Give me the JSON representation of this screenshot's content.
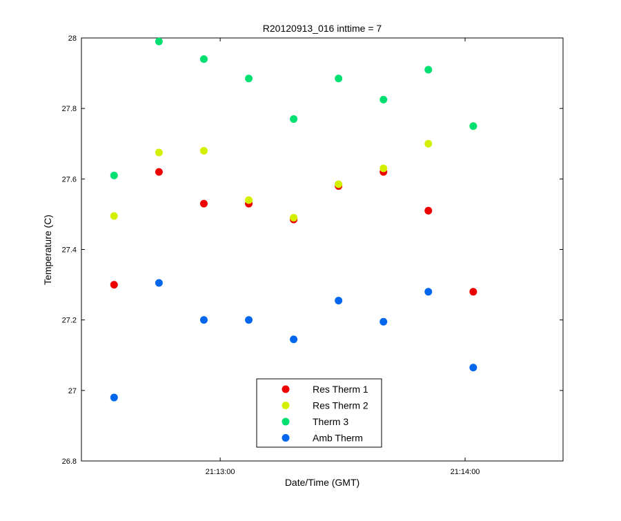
{
  "chart_data": {
    "type": "scatter",
    "title": "R20120913_016 inttime = 7",
    "xlabel": "Date/Time (GMT)",
    "ylabel": "Temperature (C)",
    "xlim": [
      "21:12:26",
      "21:14:24"
    ],
    "ylim": [
      26.8,
      28
    ],
    "x_ticks": [
      {
        "value": "21:13:00",
        "label": "21:13:00"
      },
      {
        "value": "21:14:00",
        "label": "21:14:00"
      }
    ],
    "y_ticks": [
      26.8,
      27,
      27.2,
      27.4,
      27.6,
      27.8,
      28
    ],
    "grid": false,
    "legend_position": "bottom-center",
    "x": [
      "21:12:34",
      "21:12:45",
      "21:12:56",
      "21:13:07",
      "21:13:18",
      "21:13:29",
      "21:13:40",
      "21:13:51",
      "21:14:02"
    ],
    "series": [
      {
        "name": "Res Therm 1",
        "color": "#ee0000",
        "values": [
          27.3,
          27.62,
          27.53,
          27.53,
          27.485,
          27.58,
          27.62,
          27.51,
          27.28
        ]
      },
      {
        "name": "Res Therm 2",
        "color": "#d4f000",
        "values": [
          27.495,
          27.675,
          27.68,
          27.54,
          27.49,
          27.585,
          27.63,
          27.7,
          27.75
        ]
      },
      {
        "name": "Therm 3",
        "color": "#00e070",
        "values": [
          27.61,
          27.99,
          27.94,
          27.885,
          27.77,
          27.885,
          27.825,
          27.91,
          27.75
        ]
      },
      {
        "name": "Amb Therm",
        "color": "#0066ee",
        "values": [
          26.98,
          27.305,
          27.2,
          27.2,
          27.145,
          27.255,
          27.195,
          27.28,
          27.065
        ]
      }
    ]
  }
}
